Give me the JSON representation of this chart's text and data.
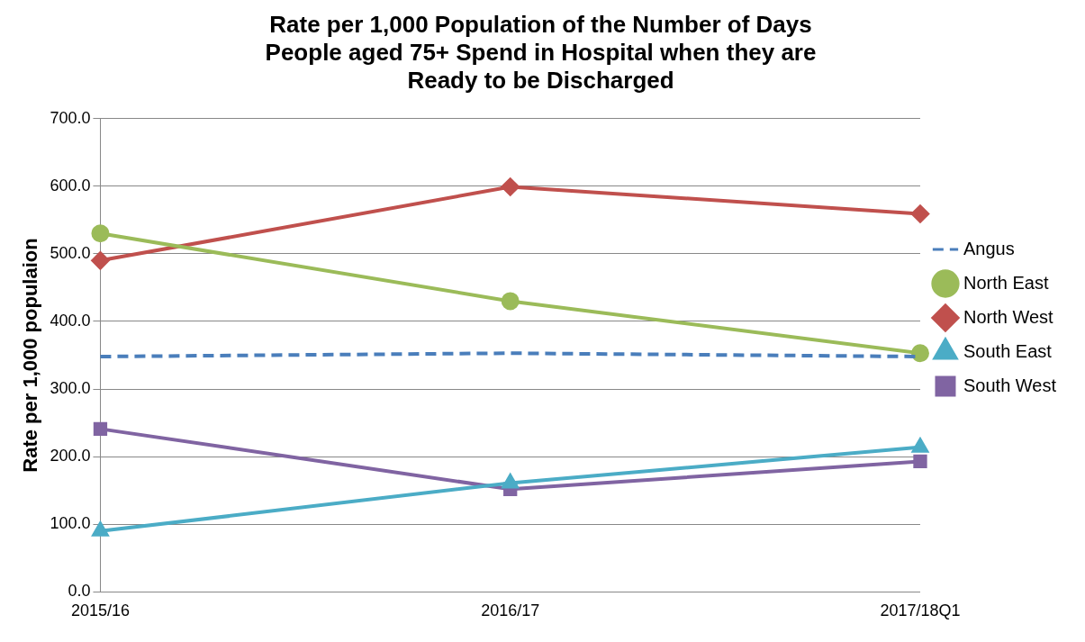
{
  "chart_data": {
    "type": "line",
    "title": "Rate per 1,000 Population of the Number of Days People aged 75+ Spend in Hospital when they are Ready to be Discharged",
    "ylabel": "Rate per 1,000 populaion",
    "categories": [
      "2015/16",
      "2016/17",
      "2017/18Q1"
    ],
    "series": [
      {
        "name": "Angus",
        "color": "#4a7ebb",
        "values": [
          348,
          353,
          348
        ],
        "line_style": "dashed",
        "marker": "none"
      },
      {
        "name": "North East",
        "color": "#9bbb59",
        "values": [
          530,
          430,
          353
        ],
        "marker": "circle"
      },
      {
        "name": "North West",
        "color": "#c0504d",
        "values": [
          490,
          599,
          559
        ],
        "marker": "diamond"
      },
      {
        "name": "South East",
        "color": "#4bacc6",
        "values": [
          90,
          161,
          214
        ],
        "marker": "triangle"
      },
      {
        "name": "South West",
        "color": "#8064a2",
        "values": [
          241,
          152,
          193
        ],
        "marker": "square"
      }
    ],
    "ylim": [
      0,
      700
    ],
    "yticks": [
      {
        "value": 0,
        "label": "0.0"
      },
      {
        "value": 100,
        "label": "100.0"
      },
      {
        "value": 200,
        "label": "200.0"
      },
      {
        "value": 300,
        "label": "300.0"
      },
      {
        "value": 400,
        "label": "400.0"
      },
      {
        "value": 500,
        "label": "500.0"
      },
      {
        "value": 600,
        "label": "600.0"
      },
      {
        "value": 700,
        "label": "700.0"
      }
    ],
    "grid": "y",
    "legend": "right"
  }
}
